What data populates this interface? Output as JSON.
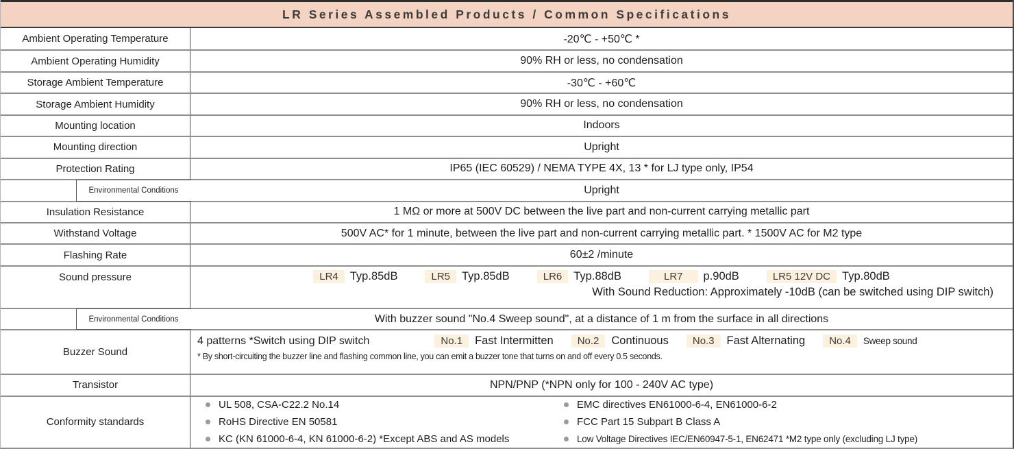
{
  "title": "LR Series Assembled Products / Common Specifications",
  "colors": {
    "header_bg": "#f5d3c3",
    "badge_bg": "#fcf1df",
    "row_divider": "#8e8e8e",
    "text": "#1e1e1e"
  },
  "rows": [
    {
      "label": "Ambient Operating Temperature",
      "value": "-20℃ - +50℃ *"
    },
    {
      "label": "Ambient Operating Humidity",
      "value": "90% RH or less, no condensation"
    },
    {
      "label": "Storage Ambient Temperature",
      "value": "-30℃ - +60℃"
    },
    {
      "label": "Storage Ambient Humidity",
      "value": "90% RH or less, no condensation"
    },
    {
      "label": "Mounting location",
      "value": "Indoors"
    },
    {
      "label": "Mounting direction",
      "value": "Upright"
    },
    {
      "label": "Protection Rating",
      "value": "IP65 (IEC 60529) / NEMA TYPE 4X, 13 * for LJ type only, IP54"
    },
    {
      "label": "Environmental Conditions",
      "value": "Upright"
    },
    {
      "label": "Insulation Resistance",
      "value": "1 MΩ or more at 500V DC between the live part and non-current carrying metallic part"
    },
    {
      "label": "Withstand Voltage",
      "value": "500V AC* for 1 minute, between the live part and non-current carrying metallic part. * 1500V AC for M2 type"
    },
    {
      "label": "Flashing Rate",
      "value": "60±2 /minute"
    }
  ],
  "sound_pressure": {
    "label": "Sound pressure",
    "items": [
      {
        "badge": "LR4",
        "value": "Typ.85dB"
      },
      {
        "badge": "LR5",
        "value": "Typ.85dB"
      },
      {
        "badge": "LR6",
        "value": "Typ.88dB"
      },
      {
        "badge": "LR7",
        "value": "p.90dB"
      },
      {
        "badge": "LR5 12V DC",
        "value": "Typ.80dB"
      }
    ],
    "note": "With Sound Reduction: Approximately -10dB (can be switched using DIP switch)"
  },
  "env_conditions2": {
    "label": "Environmental Conditions",
    "value": "With buzzer sound \"No.4 Sweep sound\", at a distance of 1 m from the surface in all directions"
  },
  "buzzer": {
    "label": "Buzzer Sound",
    "intro": "4 patterns *Switch using DIP switch",
    "patterns": [
      {
        "badge": "No.1",
        "value": "Fast Intermitten"
      },
      {
        "badge": "No.2",
        "value": "Continuous"
      },
      {
        "badge": "No.3",
        "value": "Fast Alternating"
      },
      {
        "badge": "No.4",
        "value": "Sweep sound"
      }
    ],
    "footnote": "* By short-circuiting the buzzer line and flashing common line, you can emit a buzzer tone that turns on and off every 0.5 seconds."
  },
  "transistor": {
    "label": "Transistor",
    "value": "NPN/PNP (*NPN only for 100 - 240V AC type)"
  },
  "conformity": {
    "label": "Conformity standards",
    "col1": [
      "UL 508, CSA-C22.2 No.14",
      "RoHS Directive EN 50581",
      "KC (KN 61000-6-4, KN 61000-6-2) *Except ABS and AS models"
    ],
    "col2": [
      "EMC directives EN61000-6-4, EN61000-6-2",
      "FCC Part 15 Subpart B Class A",
      "Low Voltage Directives IEC/EN60947-5-1, EN62471 *M2 type only (excluding LJ type)"
    ]
  }
}
